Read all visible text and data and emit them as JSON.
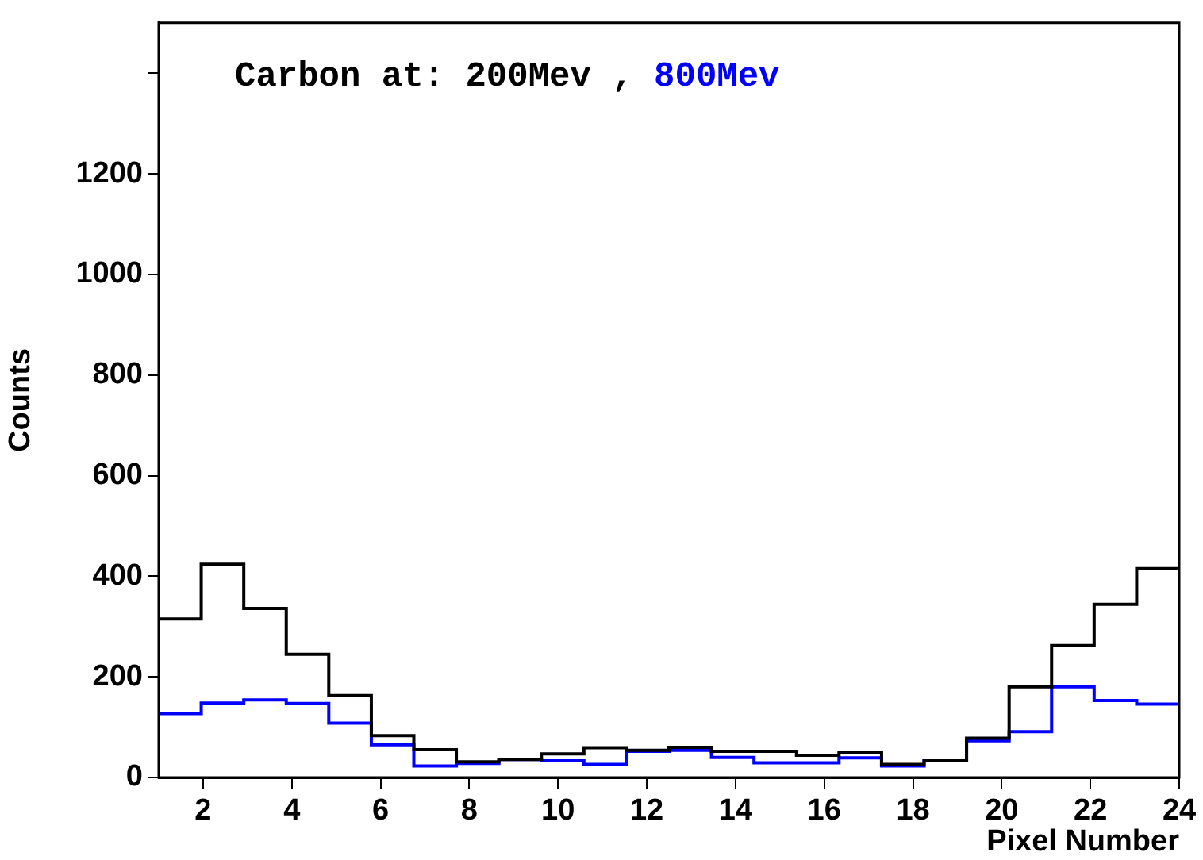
{
  "chart_data": {
    "type": "histogram",
    "legend_title": "Carbon at:",
    "xlabel": "Pixel Number",
    "ylabel": "Counts",
    "bins": [
      1,
      1.958,
      2.917,
      3.875,
      4.833,
      5.792,
      6.75,
      7.708,
      8.667,
      9.625,
      10.583,
      11.542,
      12.5,
      13.458,
      14.417,
      15.375,
      16.333,
      17.292,
      18.25,
      19.208,
      20.167,
      21.125,
      22.083,
      23.042,
      24
    ],
    "series": [
      {
        "name": "200Mev",
        "color": "#000000",
        "values": [
          315,
          424,
          336,
          245,
          163,
          83,
          55,
          31,
          36,
          47,
          59,
          54,
          60,
          52,
          52,
          44,
          50,
          26,
          33,
          78,
          180,
          262,
          344,
          415
        ]
      },
      {
        "name": "800Mev",
        "color": "#0000ff",
        "values": [
          127,
          148,
          154,
          147,
          108,
          65,
          23,
          28,
          36,
          33,
          26,
          52,
          54,
          40,
          29,
          29,
          39,
          23,
          33,
          73,
          91,
          180,
          153,
          146
        ]
      }
    ],
    "xlim": [
      1,
      24
    ],
    "xticks": [
      2,
      4,
      6,
      8,
      10,
      12,
      14,
      16,
      18,
      20,
      22,
      24
    ],
    "ylim": [
      0,
      1500
    ],
    "yticks": [
      0,
      200,
      400,
      600,
      800,
      1000,
      1200,
      {
        "value": 1400,
        "label": null
      }
    ],
    "annotations": [
      ","
    ],
    "grid": false,
    "legend": "top left"
  }
}
